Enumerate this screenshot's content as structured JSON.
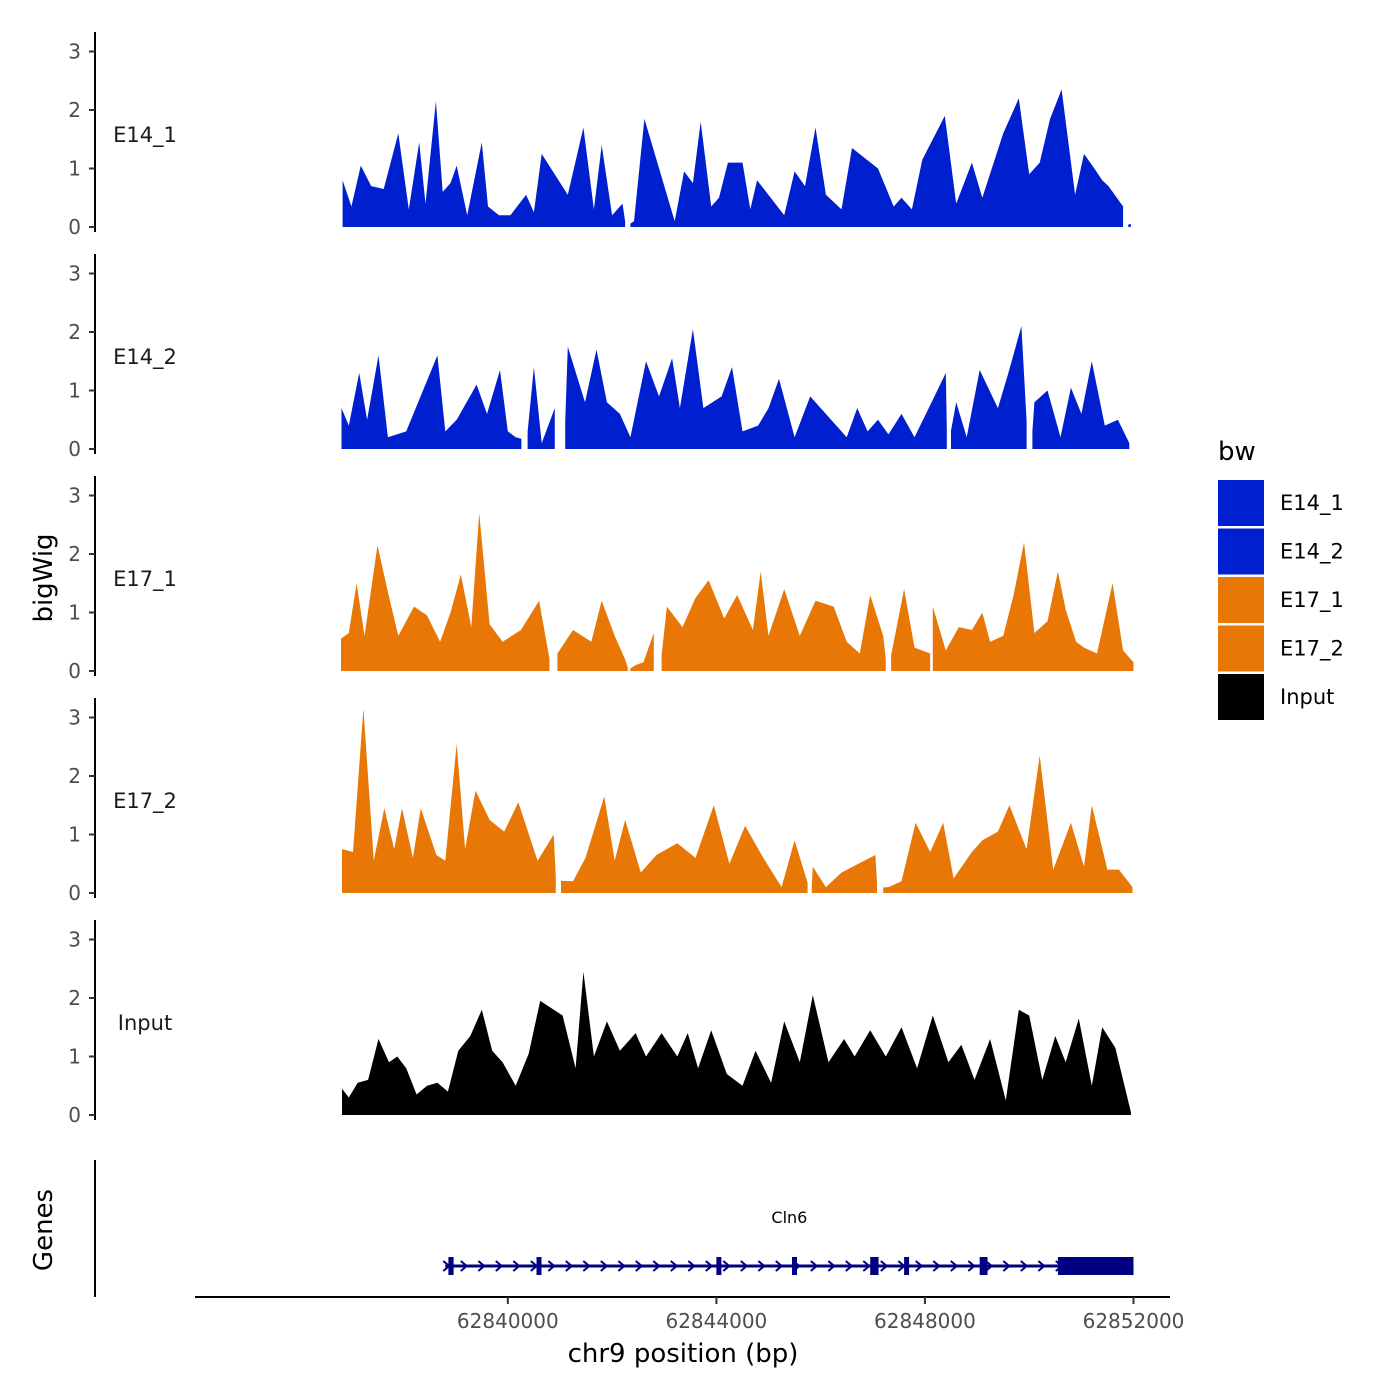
{
  "chart_data": {
    "type": "area",
    "title": "",
    "xlabel": "chr9 position (bp)",
    "ylabel": "bigWig",
    "genes_panel_label": "Genes",
    "xlim": [
      62834000,
      62852700
    ],
    "ylim": [
      0,
      3.3
    ],
    "x_ticks": [
      62840000,
      62844000,
      62848000,
      62852000
    ],
    "y_ticks": [
      0,
      1,
      2,
      3
    ],
    "legend": {
      "title": "bw",
      "position": "right"
    },
    "colors": {
      "E14_1": "#0020d0",
      "E14_2": "#0020d0",
      "E17_1": "#e87705",
      "E17_2": "#e87705",
      "Input": "#000000",
      "gene": "#000080"
    },
    "x_tick_labels": [
      "62840000",
      "62844000",
      "62848000",
      "62852000"
    ],
    "y_tick_labels": [
      "0",
      "1",
      "2",
      "3"
    ],
    "series": [
      {
        "name": "E14_1",
        "x": [
          62836830,
          62837000,
          62837180,
          62837380,
          62837620,
          62837900,
          62838100,
          62838300,
          62838420,
          62838620,
          62838750,
          62838900,
          62839020,
          62839220,
          62839500,
          62839620,
          62839830,
          62840050,
          62840350,
          62840500,
          62840650,
          62840850,
          62841150,
          62841450,
          62841650,
          62841800,
          62842000,
          62842200,
          62842420,
          62842620,
          62842850,
          62843200,
          62843380,
          62843550,
          62843700,
          62843900,
          62844050,
          62844220,
          62844500,
          62844650,
          62844780,
          62845100,
          62845300,
          62845500,
          62845700,
          62845900,
          62846100,
          62846400,
          62846600,
          62846800,
          62847100,
          62847400,
          62847550,
          62847750,
          62847950,
          62848180,
          62848380,
          62848600,
          62848900,
          62849100,
          62849300,
          62849500,
          62849800,
          62850000,
          62850200,
          62850400,
          62850620,
          62850880,
          62851050,
          62851250,
          62851400,
          62851520,
          62851800,
          62851950
        ],
        "y": [
          0.8,
          0.35,
          1.05,
          0.7,
          0.65,
          1.6,
          0.3,
          1.45,
          0.4,
          2.15,
          0.6,
          0.75,
          1.05,
          0.2,
          1.45,
          0.35,
          0.2,
          0.2,
          0.55,
          0.25,
          1.25,
          0.45,
          0.55,
          1.7,
          0.3,
          1.4,
          0.2,
          0.4,
          0.1,
          1.85,
          0.85,
          0.1,
          0.95,
          0.75,
          1.8,
          0.35,
          0.5,
          1.1,
          1.1,
          0.3,
          0.8,
          0.1,
          0.2,
          0.95,
          0.7,
          1.7,
          0.55,
          0.3,
          1.35,
          0.15,
          1.0,
          0.35,
          0.5,
          0.3,
          1.15,
          0.2,
          1.9,
          0.4,
          1.1,
          0.5,
          0.8,
          1.6,
          2.2,
          0.9,
          1.1,
          1.85,
          2.35,
          0.55,
          1.25,
          1.0,
          0.8,
          0.7,
          0.35,
          0.05
        ],
        "gaps": [
          [
            62840700,
            62840950
          ],
          [
            62842250,
            62842350
          ],
          [
            62842820,
            62843150
          ],
          [
            62844950,
            62845250
          ],
          [
            62846600,
            62846900
          ],
          [
            62847950,
            62848250
          ],
          [
            62849250,
            62849450
          ],
          [
            62851800,
            62851900
          ]
        ]
      },
      {
        "name": "E14_2",
        "x": [
          62836810,
          62836950,
          62837150,
          62837300,
          62837520,
          62837700,
          62838050,
          62838350,
          62838650,
          62838800,
          62839020,
          62839150,
          62839400,
          62839600,
          62839850,
          62840000,
          62840150,
          62840500,
          62840650,
          62840900,
          62841150,
          62841480,
          62841700,
          62841900,
          62842150,
          62842350,
          62842650,
          62842900,
          62843150,
          62843300,
          62843550,
          62843750,
          62844100,
          62844300,
          62844500,
          62844800,
          62845000,
          62845200,
          62845500,
          62845800,
          62846100,
          62846500,
          62846700,
          62846900,
          62847100,
          62847300,
          62847550,
          62847800,
          62848100,
          62848400,
          62848600,
          62848800,
          62849050,
          62849400,
          62849600,
          62849850,
          62850100,
          62850350,
          62850600,
          62850800,
          62851000,
          62851200,
          62851450,
          62851700,
          62851920
        ],
        "y": [
          0.7,
          0.4,
          1.3,
          0.5,
          1.6,
          0.2,
          0.3,
          0.6,
          1.6,
          0.3,
          0.5,
          0.6,
          1.1,
          0.6,
          1.35,
          0.3,
          0.2,
          1.4,
          0.1,
          0.7,
          1.75,
          0.8,
          1.7,
          0.8,
          0.6,
          0.2,
          1.5,
          0.9,
          1.55,
          0.7,
          2.05,
          0.7,
          0.9,
          1.4,
          0.3,
          0.4,
          0.7,
          1.2,
          0.2,
          0.9,
          1.25,
          0.2,
          0.7,
          0.3,
          0.5,
          0.25,
          0.6,
          0.2,
          0.75,
          1.3,
          0.8,
          0.2,
          1.35,
          0.7,
          1.3,
          2.1,
          0.8,
          1.0,
          0.2,
          1.05,
          0.6,
          1.5,
          0.4,
          0.5,
          0.1
        ],
        "gaps": [
          [
            62838260,
            62838490
          ],
          [
            62839120,
            62839310
          ],
          [
            62840260,
            62840380
          ],
          [
            62840900,
            62841100
          ],
          [
            62845980,
            62846150
          ],
          [
            62848420,
            62848500
          ],
          [
            62849950,
            62850060
          ]
        ]
      },
      {
        "name": "E17_1",
        "x": [
          62836800,
          62836950,
          62837100,
          62837250,
          62837500,
          62837700,
          62837900,
          62838200,
          62838450,
          62838700,
          62838900,
          62839100,
          62839300,
          62839450,
          62839650,
          62839900,
          62840250,
          62840600,
          62840950,
          62841250,
          62841600,
          62841800,
          62842050,
          62842250,
          62842450,
          62842600,
          62842800,
          62843050,
          62843350,
          62843600,
          62843850,
          62844150,
          62844400,
          62844700,
          62844850,
          62845000,
          62845300,
          62845600,
          62845900,
          62846250,
          62846500,
          62846750,
          62846950,
          62847200,
          62847600,
          62847800,
          62848150,
          62848400,
          62848650,
          62848900,
          62849100,
          62849250,
          62849500,
          62849700,
          62849900,
          62850100,
          62850350,
          62850550,
          62850700,
          62850900,
          62851050,
          62851300,
          62851600,
          62851800,
          62852000
        ],
        "y": [
          0.55,
          0.65,
          1.5,
          0.6,
          2.15,
          1.35,
          0.6,
          1.1,
          0.95,
          0.5,
          1.0,
          1.65,
          0.75,
          2.7,
          0.8,
          0.5,
          0.7,
          1.2,
          0.3,
          0.7,
          0.5,
          1.2,
          0.6,
          0.2,
          0.1,
          0.15,
          0.65,
          1.1,
          0.75,
          1.25,
          1.55,
          0.9,
          1.3,
          0.7,
          1.7,
          0.6,
          1.4,
          0.6,
          1.2,
          1.1,
          0.5,
          0.3,
          1.3,
          0.6,
          1.4,
          0.4,
          1.1,
          0.35,
          0.75,
          0.7,
          1.0,
          0.5,
          0.6,
          1.3,
          2.2,
          0.65,
          0.85,
          1.7,
          1.05,
          0.5,
          0.4,
          0.3,
          1.5,
          0.35,
          0.15
        ],
        "gaps": [
          [
            62840800,
            62840950
          ],
          [
            62842300,
            62842350
          ],
          [
            62842800,
            62842950
          ],
          [
            62847250,
            62847350
          ],
          [
            62848100,
            62848150
          ]
        ]
      },
      {
        "name": "E17_2",
        "x": [
          62836820,
          62837030,
          62837230,
          62837430,
          62837630,
          62837820,
          62837970,
          62838180,
          62838330,
          62838630,
          62838800,
          62839020,
          62839180,
          62839380,
          62839650,
          62839930,
          62840200,
          62840570,
          62840880,
          62841250,
          62841490,
          62841850,
          62842050,
          62842250,
          62842550,
          62842850,
          62843250,
          62843600,
          62843950,
          62844250,
          62844550,
          62844900,
          62845250,
          62845500,
          62845850,
          62846100,
          62846400,
          62846700,
          62847050,
          62847300,
          62847550,
          62847820,
          62848100,
          62848350,
          62848550,
          62848900,
          62849100,
          62849400,
          62849620,
          62849950,
          62850200,
          62850460,
          62850800,
          62851050,
          62851200,
          62851500,
          62851720,
          62851980
        ],
        "y": [
          0.75,
          0.7,
          3.15,
          0.55,
          1.45,
          0.75,
          1.45,
          0.6,
          1.45,
          0.65,
          0.55,
          2.55,
          0.75,
          1.75,
          1.25,
          1.05,
          1.55,
          0.55,
          1.0,
          0.2,
          0.6,
          1.65,
          0.55,
          1.25,
          0.35,
          0.65,
          0.85,
          0.6,
          1.5,
          0.5,
          1.15,
          0.6,
          0.1,
          0.9,
          0.45,
          0.1,
          0.35,
          0.5,
          0.65,
          0.1,
          0.2,
          1.2,
          0.7,
          1.2,
          0.25,
          0.7,
          0.9,
          1.05,
          1.5,
          0.75,
          2.35,
          0.4,
          1.2,
          0.45,
          1.5,
          0.4,
          0.4,
          0.1
        ],
        "gaps": [
          [
            62840920,
            62841020
          ],
          [
            62845750,
            62845830
          ],
          [
            62846630,
            62846730
          ],
          [
            62847080,
            62847200
          ]
        ]
      },
      {
        "name": "Input",
        "x": [
          62836820,
          62836950,
          62837120,
          62837320,
          62837520,
          62837720,
          62837880,
          62838050,
          62838250,
          62838450,
          62838650,
          62838850,
          62839050,
          62839280,
          62839500,
          62839700,
          62839900,
          62840150,
          62840400,
          62840620,
          62840850,
          62841050,
          62841300,
          62841450,
          62841650,
          62841900,
          62842150,
          62842450,
          62842650,
          62842950,
          62843250,
          62843450,
          62843650,
          62843900,
          62844200,
          62844500,
          62844750,
          62845050,
          62845300,
          62845600,
          62845850,
          62846150,
          62846450,
          62846650,
          62846950,
          62847250,
          62847550,
          62847850,
          62848150,
          62848450,
          62848700,
          62848950,
          62849250,
          62849550,
          62849800,
          62850000,
          62850250,
          62850500,
          62850700,
          62850950,
          62851200,
          62851400,
          62851650,
          62851950
        ],
        "y": [
          0.45,
          0.3,
          0.55,
          0.6,
          1.3,
          0.9,
          1.0,
          0.8,
          0.35,
          0.5,
          0.55,
          0.4,
          1.1,
          1.35,
          1.8,
          1.1,
          0.9,
          0.5,
          1.05,
          1.95,
          0.5,
          1.7,
          0.8,
          2.45,
          1.0,
          1.6,
          1.1,
          1.4,
          1.0,
          1.4,
          1.0,
          1.4,
          0.8,
          1.45,
          0.7,
          0.5,
          1.1,
          0.55,
          1.6,
          0.9,
          2.05,
          0.9,
          1.3,
          1.0,
          1.45,
          1.0,
          1.5,
          0.8,
          1.7,
          0.9,
          1.2,
          0.6,
          1.3,
          0.25,
          1.8,
          1.7,
          0.6,
          1.35,
          0.9,
          1.65,
          0.5,
          1.5,
          1.15,
          0.05
        ],
        "gaps": [
          [
            62840750,
            62841050
          ]
        ]
      }
    ],
    "gene": {
      "name": "Cln6",
      "start": 62838800,
      "end": 62852000,
      "strand": "+",
      "exons": [
        [
          62838860,
          62838960
        ],
        [
          62840550,
          62840620
        ],
        [
          62844000,
          62844080
        ],
        [
          62845450,
          62845500
        ],
        [
          62846950,
          62847110
        ],
        [
          62847600,
          62847650
        ],
        [
          62849050,
          62849200
        ],
        [
          62850550,
          62852000
        ]
      ]
    }
  }
}
